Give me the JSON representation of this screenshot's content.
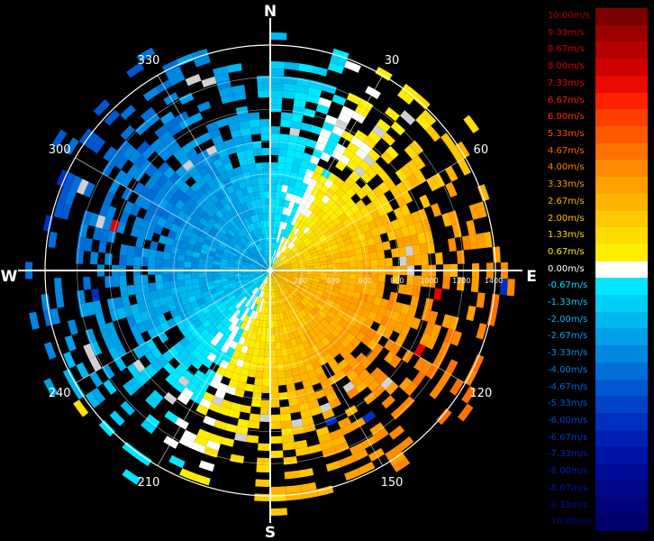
{
  "cardinals": {
    "n": "N",
    "e": "E",
    "s": "S",
    "w": "W"
  },
  "azimuth_labels": [
    {
      "deg": 30,
      "text": "30"
    },
    {
      "deg": 60,
      "text": "60"
    },
    {
      "deg": 120,
      "text": "120"
    },
    {
      "deg": 150,
      "text": "150"
    },
    {
      "deg": 210,
      "text": "210"
    },
    {
      "deg": 240,
      "text": "240"
    },
    {
      "deg": 300,
      "text": "300"
    },
    {
      "deg": 330,
      "text": "330"
    }
  ],
  "range_labels": [
    "200",
    "400",
    "600",
    "800",
    "1000",
    "1200",
    "1400"
  ],
  "legend": [
    {
      "label": "10.00m/s",
      "color": "#7a0000",
      "text_color": "#b00000"
    },
    {
      "label": "9.33m/s",
      "color": "#9a0000",
      "text_color": "#c00000"
    },
    {
      "label": "8.67m/s",
      "color": "#b40000",
      "text_color": "#d00000"
    },
    {
      "label": "8.00m/s",
      "color": "#d00000",
      "text_color": "#e00000"
    },
    {
      "label": "7.33m/s",
      "color": "#ea0a00",
      "text_color": "#f00000"
    },
    {
      "label": "6.67m/s",
      "color": "#ff2200",
      "text_color": "#ff1a00"
    },
    {
      "label": "6.00m/s",
      "color": "#ff3f00",
      "text_color": "#ff3000"
    },
    {
      "label": "5.33m/s",
      "color": "#ff5a00",
      "text_color": "#ff4a00"
    },
    {
      "label": "4.67m/s",
      "color": "#ff7200",
      "text_color": "#ff6400"
    },
    {
      "label": "4.00m/s",
      "color": "#ff8a00",
      "text_color": "#ff8000"
    },
    {
      "label": "3.33m/s",
      "color": "#ffa000",
      "text_color": "#ff9a00"
    },
    {
      "label": "2.67m/s",
      "color": "#ffb400",
      "text_color": "#ffb000"
    },
    {
      "label": "2.00m/s",
      "color": "#ffc800",
      "text_color": "#ffc400"
    },
    {
      "label": "1.33m/s",
      "color": "#ffdc00",
      "text_color": "#ffd800"
    },
    {
      "label": "0.67m/s",
      "color": "#ffee00",
      "text_color": "#ffea00"
    },
    {
      "label": "0.00m/s",
      "color": "#ffffff",
      "text_color": "#ffffff"
    },
    {
      "label": "-0.67m/s",
      "color": "#00e8ff",
      "text_color": "#00e0ff"
    },
    {
      "label": "-1.33m/s",
      "color": "#00d0f8",
      "text_color": "#00ccf4"
    },
    {
      "label": "-2.00m/s",
      "color": "#00b8f0",
      "text_color": "#00b8f0"
    },
    {
      "label": "-2.67m/s",
      "color": "#00a0e8",
      "text_color": "#00a4ec"
    },
    {
      "label": "-3.33m/s",
      "color": "#0088e0",
      "text_color": "#0090e6"
    },
    {
      "label": "-4.00m/s",
      "color": "#0070d8",
      "text_color": "#007ce0"
    },
    {
      "label": "-4.67m/s",
      "color": "#0058d0",
      "text_color": "#0066d8"
    },
    {
      "label": "-5.33m/s",
      "color": "#0044c8",
      "text_color": "#0054d0"
    },
    {
      "label": "-6.00m/s",
      "color": "#0030c0",
      "text_color": "#0044c8"
    },
    {
      "label": "-6.67m/s",
      "color": "#0020b4",
      "text_color": "#0036c0"
    },
    {
      "label": "-7.33m/s",
      "color": "#0014a8",
      "text_color": "#0028b8"
    },
    {
      "label": "-8.00m/s",
      "color": "#000c98",
      "text_color": "#001eb0"
    },
    {
      "label": "-8.67m/s",
      "color": "#000888",
      "text_color": "#0016a6"
    },
    {
      "label": "-9.33m/s",
      "color": "#000478",
      "text_color": "#000e9a"
    },
    {
      "label": "-10.00m/s",
      "color": "#00006a",
      "text_color": "#00088e"
    }
  ]
}
